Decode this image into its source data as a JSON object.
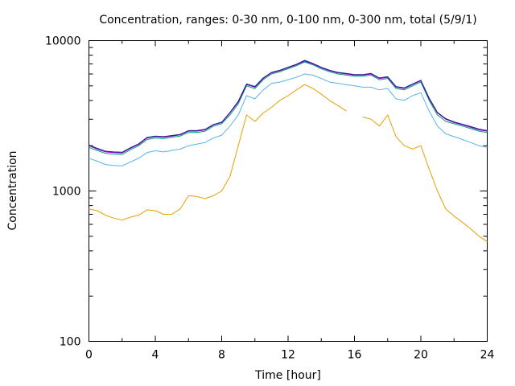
{
  "chart_data": {
    "type": "line",
    "title": "Concentration, ranges: 0-30 nm, 0-100 nm, 0-300 nm, total (5/9/1)",
    "xlabel": "Time [hour]",
    "ylabel": "Concentration",
    "xlim": [
      0,
      24
    ],
    "ylim": [
      100,
      10000
    ],
    "yscale": "log",
    "grid": false,
    "legend": "none",
    "x_ticks": [
      0,
      4,
      8,
      12,
      16,
      20,
      24
    ],
    "y_ticks": [
      100,
      1000,
      10000
    ],
    "x": [
      0,
      0.5,
      1,
      1.5,
      2,
      2.5,
      3,
      3.5,
      4,
      4.5,
      5,
      5.5,
      6,
      6.5,
      7,
      7.5,
      8,
      8.5,
      9,
      9.5,
      10,
      10.5,
      11,
      11.5,
      12,
      12.5,
      13,
      13.5,
      14,
      14.5,
      15,
      15.5,
      16,
      16.5,
      17,
      17.5,
      18,
      18.5,
      19,
      19.5,
      20,
      20.5,
      21,
      21.5,
      22,
      22.5,
      23,
      23.5,
      24
    ],
    "series": [
      {
        "color": "#e69f00",
        "values": [
          760,
          740,
          690,
          660,
          640,
          670,
          690,
          750,
          740,
          700,
          700,
          760,
          930,
          920,
          890,
          930,
          1000,
          1250,
          2000,
          3200,
          2900,
          3300,
          3600,
          4000,
          4300,
          4700,
          5100,
          4800,
          4400,
          4000,
          3700,
          3400,
          null,
          3100,
          3000,
          2700,
          3200,
          2300,
          2000,
          1900,
          2000,
          1400,
          1000,
          760,
          680,
          620,
          560,
          500,
          460
        ]
      },
      {
        "color": "#56b4e9",
        "values": [
          1650,
          1580,
          1500,
          1480,
          1470,
          1560,
          1650,
          1800,
          1850,
          1820,
          1860,
          1900,
          2000,
          2050,
          2100,
          2250,
          2350,
          2700,
          3200,
          4300,
          4100,
          4700,
          5200,
          5300,
          5500,
          5700,
          6000,
          5900,
          5600,
          5300,
          5200,
          5100,
          5000,
          4900,
          4900,
          4700,
          4800,
          4100,
          4000,
          4300,
          4500,
          3400,
          2700,
          2400,
          2300,
          2200,
          2100,
          2000,
          1950
        ]
      },
      {
        "color": "#009e73",
        "values": [
          1950,
          1860,
          1780,
          1760,
          1750,
          1880,
          2000,
          2200,
          2250,
          2230,
          2280,
          2320,
          2450,
          2450,
          2500,
          2700,
          2800,
          3200,
          3800,
          5000,
          4800,
          5500,
          6000,
          6200,
          6500,
          6800,
          7200,
          6900,
          6500,
          6200,
          6000,
          5900,
          5800,
          5800,
          5900,
          5500,
          5600,
          4800,
          4700,
          5000,
          5300,
          4000,
          3200,
          2900,
          2800,
          2700,
          2600,
          2500,
          2450
        ]
      },
      {
        "color": "#9400d3",
        "values": [
          2000,
          1900,
          1820,
          1800,
          1790,
          1920,
          2040,
          2250,
          2300,
          2280,
          2320,
          2360,
          2500,
          2500,
          2550,
          2750,
          2850,
          3300,
          3900,
          5100,
          4900,
          5600,
          6100,
          6300,
          6600,
          6900,
          7300,
          7000,
          6600,
          6300,
          6100,
          6000,
          5900,
          5900,
          6000,
          5600,
          5700,
          4900,
          4800,
          5100,
          5400,
          4100,
          3300,
          3000,
          2850,
          2750,
          2650,
          2550,
          2500
        ]
      },
      {
        "color": "#1f1f8f",
        "values": [
          2020,
          1920,
          1840,
          1820,
          1810,
          1940,
          2060,
          2270,
          2320,
          2300,
          2340,
          2380,
          2520,
          2520,
          2570,
          2770,
          2870,
          3330,
          3950,
          5150,
          4950,
          5650,
          6150,
          6350,
          6650,
          6950,
          7400,
          7050,
          6650,
          6350,
          6150,
          6050,
          5950,
          5950,
          6050,
          5650,
          5750,
          4950,
          4850,
          5150,
          5450,
          4150,
          3330,
          3030,
          2880,
          2780,
          2680,
          2580,
          2520
        ]
      }
    ]
  }
}
